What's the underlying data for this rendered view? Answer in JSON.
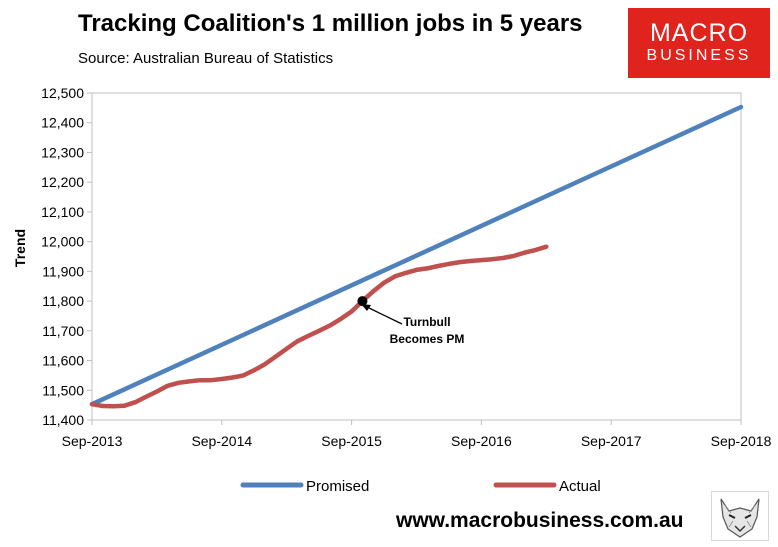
{
  "title": "Tracking Coalition's 1 million jobs in 5 years",
  "subtitle": "Source: Australian Bureau of Statistics",
  "logo": {
    "line1": "MACRO",
    "line2": "BUSINESS"
  },
  "website": "www.macrobusiness.com.au",
  "colors": {
    "promised": "#4f81bd",
    "actual": "#c0504d",
    "logo_bg": "#e0231c"
  },
  "chart_data": {
    "type": "line",
    "title": "Tracking Coalition's 1 million jobs in 5 years",
    "xlabel": "",
    "ylabel": "Trend",
    "ylim": [
      11400,
      12500
    ],
    "yticks": [
      11400,
      11500,
      11600,
      11700,
      11800,
      11900,
      12000,
      12100,
      12200,
      12300,
      12400,
      12500
    ],
    "ytick_labels": [
      "11,400",
      "11,500",
      "11,600",
      "11,700",
      "11,800",
      "11,900",
      "12,000",
      "12,100",
      "12,200",
      "12,300",
      "12,400",
      "12,500"
    ],
    "xlim": [
      "2013-09",
      "2018-09"
    ],
    "xticks": [
      "2013-09",
      "2014-09",
      "2015-09",
      "2016-09",
      "2017-09",
      "2018-09"
    ],
    "xtick_labels": [
      "Sep-2013",
      "Sep-2014",
      "Sep-2015",
      "Sep-2016",
      "Sep-2017",
      "Sep-2018"
    ],
    "grid": false,
    "legend": "bottom",
    "series": [
      {
        "name": "Promised",
        "color": "#4f81bd",
        "points": [
          [
            "2013-09",
            11453
          ],
          [
            "2018-09",
            12453
          ]
        ]
      },
      {
        "name": "Actual",
        "color": "#c0504d",
        "points": [
          [
            "2013-09",
            11453
          ],
          [
            "2013-10",
            11447
          ],
          [
            "2013-11",
            11446
          ],
          [
            "2013-12",
            11448
          ],
          [
            "2014-01",
            11460
          ],
          [
            "2014-02",
            11478
          ],
          [
            "2014-03",
            11496
          ],
          [
            "2014-04",
            11515
          ],
          [
            "2014-05",
            11525
          ],
          [
            "2014-06",
            11530
          ],
          [
            "2014-07",
            11534
          ],
          [
            "2014-08",
            11534
          ],
          [
            "2014-09",
            11538
          ],
          [
            "2014-10",
            11543
          ],
          [
            "2014-11",
            11550
          ],
          [
            "2014-12",
            11568
          ],
          [
            "2015-01",
            11588
          ],
          [
            "2015-02",
            11614
          ],
          [
            "2015-03",
            11640
          ],
          [
            "2015-04",
            11665
          ],
          [
            "2015-05",
            11683
          ],
          [
            "2015-06",
            11700
          ],
          [
            "2015-07",
            11718
          ],
          [
            "2015-08",
            11740
          ],
          [
            "2015-09",
            11765
          ],
          [
            "2015-10",
            11800
          ],
          [
            "2015-11",
            11833
          ],
          [
            "2015-12",
            11862
          ],
          [
            "2016-01",
            11883
          ],
          [
            "2016-02",
            11895
          ],
          [
            "2016-03",
            11905
          ],
          [
            "2016-04",
            11910
          ],
          [
            "2016-05",
            11918
          ],
          [
            "2016-06",
            11925
          ],
          [
            "2016-07",
            11931
          ],
          [
            "2016-08",
            11935
          ],
          [
            "2016-09",
            11938
          ],
          [
            "2016-10",
            11941
          ],
          [
            "2016-11",
            11945
          ],
          [
            "2016-12",
            11952
          ],
          [
            "2017-01",
            11963
          ],
          [
            "2017-02",
            11972
          ],
          [
            "2017-03",
            11983
          ]
        ]
      }
    ],
    "annotation": {
      "text_line1": "Turnbull",
      "text_line2": "Becomes PM",
      "point": [
        "2015-10",
        11800
      ]
    }
  }
}
